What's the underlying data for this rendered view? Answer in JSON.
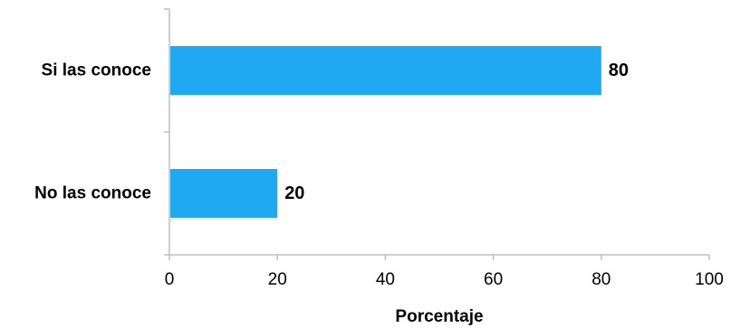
{
  "chart_data": {
    "type": "bar",
    "orientation": "horizontal",
    "categories": [
      "Si las conoce",
      "No las conoce"
    ],
    "values": [
      80,
      20
    ],
    "data_labels": [
      "80",
      "20"
    ],
    "xlabel": "Porcentaje",
    "ylabel": "",
    "xlim": [
      0,
      100
    ],
    "xticks": [
      "0",
      "20",
      "40",
      "60",
      "80",
      "100"
    ],
    "grid": false,
    "legend": "none",
    "bar_color": "#1fa9f2"
  }
}
